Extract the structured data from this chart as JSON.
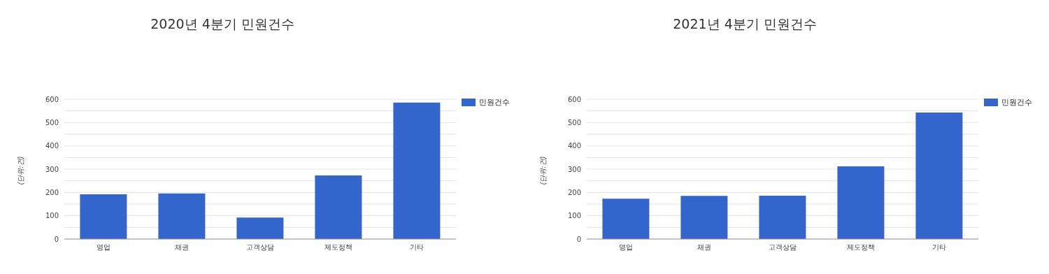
{
  "chart_data": [
    {
      "type": "bar",
      "title": "2020년 4분기 민원건수",
      "ylabel": "(단위:건)",
      "categories": [
        "영업",
        "채권",
        "고객상담",
        "제도정책",
        "기타"
      ],
      "series": [
        {
          "name": "민원건수",
          "color": "#3366cc",
          "values": [
            192,
            196,
            92,
            273,
            586
          ]
        }
      ],
      "ylim": [
        0,
        600
      ],
      "yticks": [
        0,
        {
          "value": 50,
          "label": null
        },
        100,
        {
          "value": 150,
          "label": null
        },
        200,
        {
          "value": 250,
          "label": null
        },
        300,
        {
          "value": 350,
          "label": null
        },
        400,
        {
          "value": 450,
          "label": null
        },
        500,
        {
          "value": 550,
          "label": null
        },
        600
      ],
      "grid": "y",
      "legend": "top right"
    },
    {
      "type": "bar",
      "title": "2021년 4분기 민원건수",
      "ylabel": "(단위:건)",
      "categories": [
        "영업",
        "채권",
        "고객상담",
        "제도정책",
        "기타"
      ],
      "series": [
        {
          "name": "민원건수",
          "color": "#3366cc",
          "values": [
            173,
            185,
            186,
            312,
            543
          ]
        }
      ],
      "ylim": [
        0,
        600
      ],
      "yticks": [
        0,
        {
          "value": 50,
          "label": null
        },
        100,
        {
          "value": 150,
          "label": null
        },
        200,
        {
          "value": 250,
          "label": null
        },
        300,
        {
          "value": 350,
          "label": null
        },
        400,
        {
          "value": 450,
          "label": null
        },
        500,
        {
          "value": 550,
          "label": null
        },
        600
      ],
      "grid": "y",
      "legend": "top right"
    }
  ]
}
